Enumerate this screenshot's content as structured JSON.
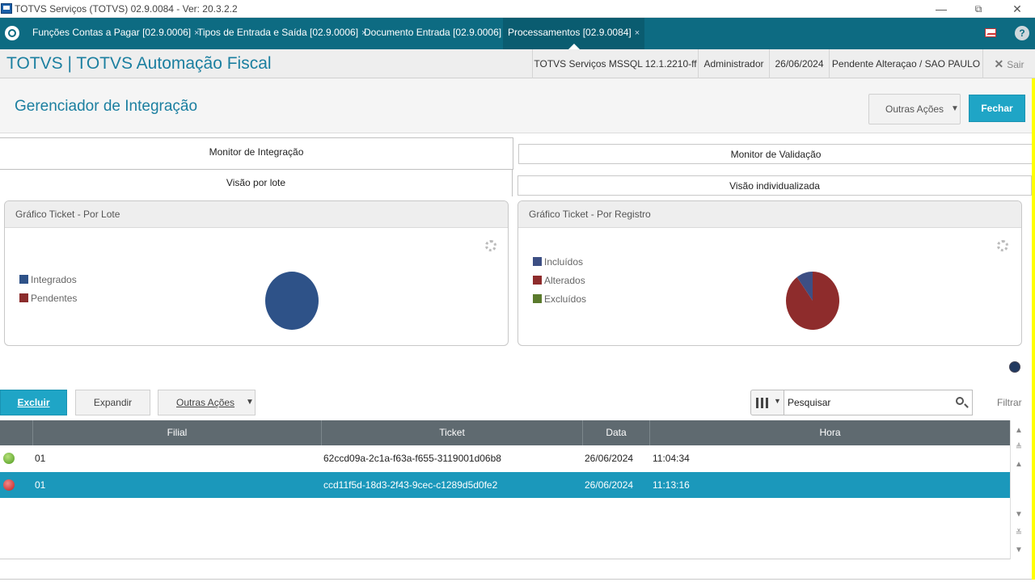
{
  "window": {
    "title": "TOTVS Serviços (TOTVS) 02.9.0084 - Ver: 20.3.2.2",
    "minimize": "—",
    "restore": "⧉",
    "close": "✕"
  },
  "tabs": [
    {
      "label": "Funções Contas a Pagar [02.9.0006]",
      "close": "×"
    },
    {
      "label": "Tipos de Entrada e Saída [02.9.0006]",
      "close": "×"
    },
    {
      "label": "Documento Entrada [02.9.0006]",
      "close": "×"
    },
    {
      "label": "Processamentos [02.9.0084]",
      "close": "×"
    }
  ],
  "help_label": "?",
  "header": {
    "brand": "TOTVS | TOTVS Automação Fiscal",
    "environment": "TOTVS Serviços MSSQL 12.1.2210-ff",
    "user": "Administrador",
    "date": "26/06/2024",
    "status": "Pendente Alteraçao / SAO PAULO",
    "exit_icon": "✕",
    "exit_label": "Sair"
  },
  "page": {
    "title": "Gerenciador de Integração",
    "outras_acoes": "Outras Ações",
    "fechar": "Fechar"
  },
  "monitor_tabs": {
    "integracao": "Monitor de Integração",
    "validacao": "Monitor de Validação"
  },
  "view_tabs": {
    "lote": "Visão por lote",
    "individual": "Visão individualizada"
  },
  "chart_data": [
    {
      "type": "pie",
      "title": "Gráfico Ticket - Por Lote",
      "categories": [
        "Integrados",
        "Pendentes"
      ],
      "values": [
        100,
        0
      ],
      "colors": [
        "#2e5288",
        "#8b2c2c"
      ],
      "legend": "left"
    },
    {
      "type": "pie",
      "title": "Gráfico Ticket - Por Registro",
      "categories": [
        "Incluídos",
        "Alterados",
        "Excluídos"
      ],
      "values": [
        10,
        90,
        0
      ],
      "colors": [
        "#3d4f84",
        "#8e2c2c",
        "#5a7a2c"
      ],
      "legend": "left"
    }
  ],
  "toolbar": {
    "excluir": "Excluir",
    "expandir": "Expandir",
    "outras_acoes": "Outras Ações",
    "search_value": "Pesquisar",
    "filtrar": "Filtrar"
  },
  "grid": {
    "columns": [
      "Filial",
      "Ticket",
      "Data",
      "Hora"
    ],
    "rows": [
      {
        "status": "green",
        "filial": "01",
        "ticket": "62ccd09a-2c1a-f63a-f655-3119001d06b8",
        "data": "26/06/2024",
        "hora": "11:04:34"
      },
      {
        "status": "red",
        "filial": "01",
        "ticket": "ccd11f5d-18d3-2f43-9cec-c1289d5d0fe2",
        "data": "26/06/2024",
        "hora": "11:13:16"
      }
    ]
  }
}
